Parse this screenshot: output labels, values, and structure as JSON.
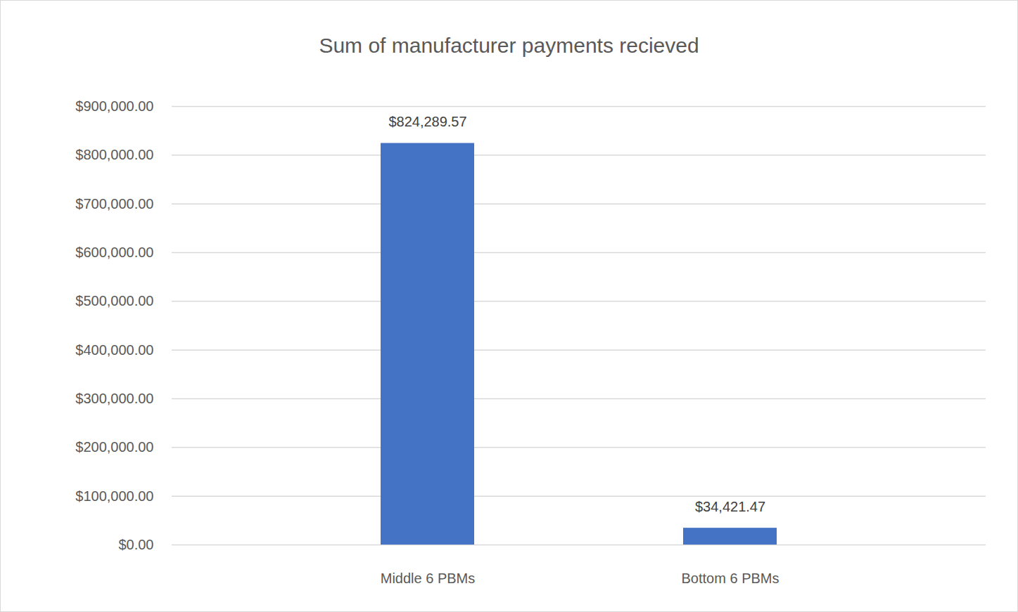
{
  "chart_data": {
    "type": "bar",
    "title": "Sum of manufacturer payments recieved",
    "categories": [
      "Middle 6 PBMs",
      "Bottom 6 PBMs"
    ],
    "values": [
      824289.57,
      34421.47
    ],
    "value_labels": [
      "$824,289.57",
      "$34,421.47"
    ],
    "color": "#4472c4",
    "ylim": [
      0,
      900000
    ],
    "yticks": [
      {
        "value": 0,
        "label": "$0.00"
      },
      {
        "value": 100000,
        "label": "$100,000.00"
      },
      {
        "value": 200000,
        "label": "$200,000.00"
      },
      {
        "value": 300000,
        "label": "$300,000.00"
      },
      {
        "value": 400000,
        "label": "$400,000.00"
      },
      {
        "value": 500000,
        "label": "$500,000.00"
      },
      {
        "value": 600000,
        "label": "$600,000.00"
      },
      {
        "value": 700000,
        "label": "$700,000.00"
      },
      {
        "value": 800000,
        "label": "$800,000.00"
      },
      {
        "value": 900000,
        "label": "$900,000.00"
      }
    ],
    "grid": true,
    "data_labels": true
  }
}
